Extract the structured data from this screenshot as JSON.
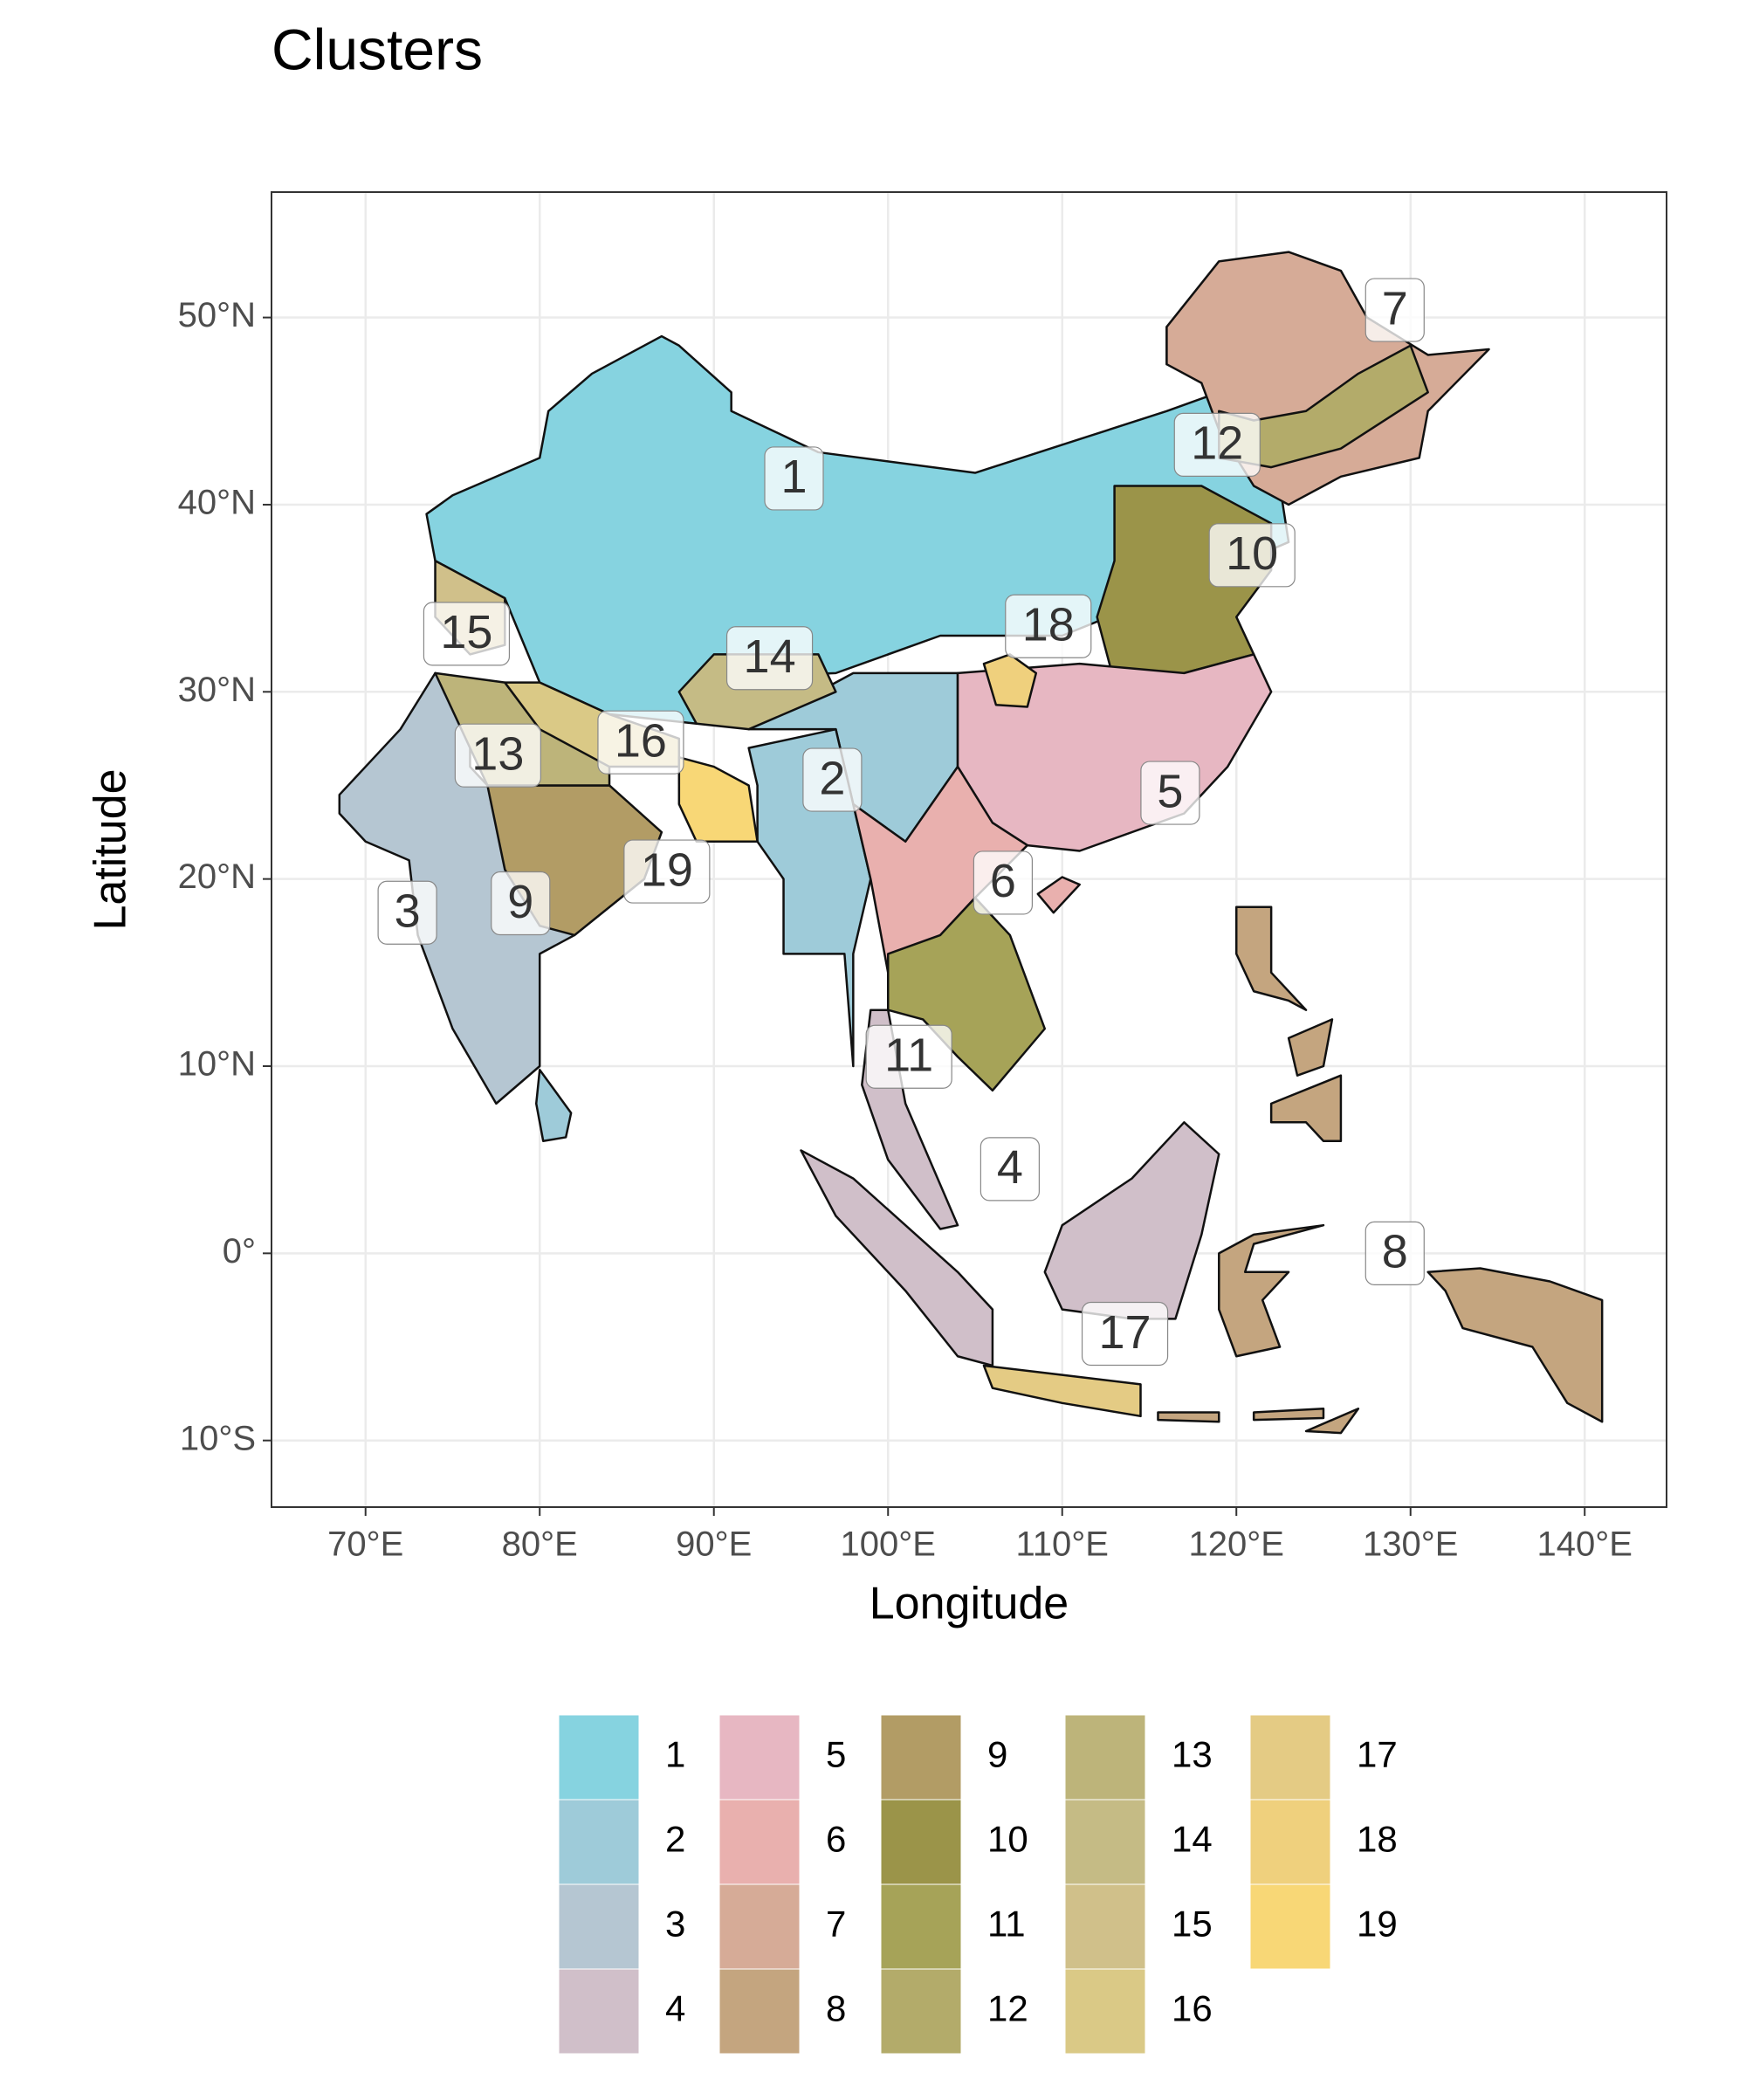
{
  "chart_data": {
    "type": "map",
    "title": "Clusters",
    "x_label": "Longitude",
    "y_label": "Latitude",
    "xlim": [
      64.6,
      144.7
    ],
    "ylim": [
      -13.56,
      56.7
    ],
    "xticks": [
      {
        "value": 70,
        "label": "70°E"
      },
      {
        "value": 80,
        "label": "80°E"
      },
      {
        "value": 90,
        "label": "90°E"
      },
      {
        "value": 100,
        "label": "100°E"
      },
      {
        "value": 110,
        "label": "110°E"
      },
      {
        "value": 120,
        "label": "120°E"
      },
      {
        "value": 130,
        "label": "130°E"
      },
      {
        "value": 140,
        "label": "140°E"
      }
    ],
    "yticks": [
      {
        "value": -10,
        "label": "10°S"
      },
      {
        "value": 0,
        "label": "0°"
      },
      {
        "value": 10,
        "label": "10°N"
      },
      {
        "value": 20,
        "label": "20°N"
      },
      {
        "value": 30,
        "label": "30°N"
      },
      {
        "value": 40,
        "label": "40°N"
      },
      {
        "value": 50,
        "label": "50°N"
      }
    ],
    "grid": true,
    "clusters": [
      {
        "name": "1",
        "color": "#86d3e0"
      },
      {
        "name": "2",
        "color": "#9ecbd9"
      },
      {
        "name": "3",
        "color": "#b5c6d2"
      },
      {
        "name": "4",
        "color": "#d0bfc9"
      },
      {
        "name": "5",
        "color": "#e7b7c2"
      },
      {
        "name": "6",
        "color": "#e9b0ae"
      },
      {
        "name": "7",
        "color": "#d6ab97"
      },
      {
        "name": "8",
        "color": "#c4a57f"
      },
      {
        "name": "9",
        "color": "#b29c65"
      },
      {
        "name": "10",
        "color": "#9b9449"
      },
      {
        "name": "11",
        "color": "#a6a358"
      },
      {
        "name": "12",
        "color": "#b3ab6a"
      },
      {
        "name": "13",
        "color": "#bdb47a"
      },
      {
        "name": "14",
        "color": "#c5bb85"
      },
      {
        "name": "15",
        "color": "#d0c08a"
      },
      {
        "name": "16",
        "color": "#dac986"
      },
      {
        "name": "17",
        "color": "#e4cb84"
      },
      {
        "name": "18",
        "color": "#efd07d"
      },
      {
        "name": "19",
        "color": "#f8d776"
      }
    ],
    "labels": [
      {
        "x": 94.6,
        "y": 41.4
      },
      {
        "x": 96.8,
        "y": 25.3
      },
      {
        "x": 72.4,
        "y": 18.2
      },
      {
        "x": 107.0,
        "y": 4.5
      },
      {
        "x": 116.2,
        "y": 24.6
      },
      {
        "x": 106.6,
        "y": 19.8
      },
      {
        "x": 129.1,
        "y": 50.4
      },
      {
        "x": 129.1,
        "y": 0.0
      },
      {
        "x": 78.9,
        "y": 18.7
      },
      {
        "x": 120.9,
        "y": 37.3
      },
      {
        "x": 101.2,
        "y": 10.5
      },
      {
        "x": 118.9,
        "y": 43.2
      },
      {
        "x": 77.6,
        "y": 26.6
      },
      {
        "x": 93.2,
        "y": 31.8
      },
      {
        "x": 75.8,
        "y": 33.1
      },
      {
        "x": 85.8,
        "y": 27.3
      },
      {
        "x": 113.6,
        "y": -4.3
      },
      {
        "x": 109.2,
        "y": 33.5
      },
      {
        "x": 87.3,
        "y": 20.4
      }
    ]
  }
}
